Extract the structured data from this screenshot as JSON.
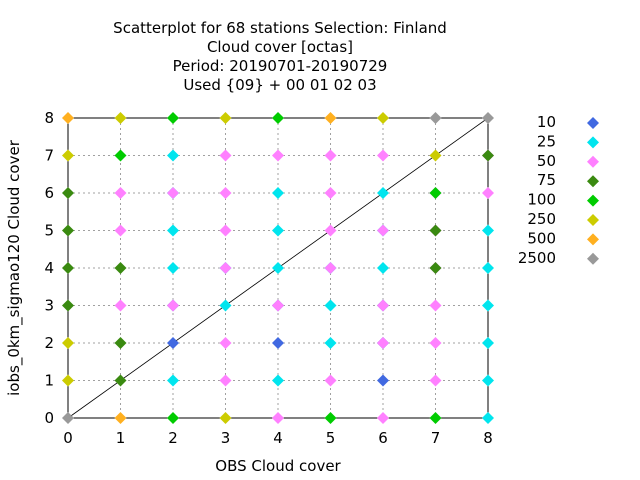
{
  "chart_data": {
    "type": "scatter",
    "title_lines": [
      "Scatterplot for   68 stations Selection: Finland",
      "Cloud cover [octas]",
      "Period: 20190701-20190729",
      "Used {09} + 00 01 02 03"
    ],
    "xlabel": "OBS Cloud cover",
    "ylabel": "iobs_0km_sigmao120 Cloud cover",
    "xlim": [
      0,
      8
    ],
    "ylim": [
      0,
      8
    ],
    "xticks": [
      "0",
      "1",
      "2",
      "3",
      "4",
      "5",
      "6",
      "7",
      "8"
    ],
    "yticks": [
      "0",
      "1",
      "2",
      "3",
      "4",
      "5",
      "6",
      "7",
      "8"
    ],
    "grid": true,
    "diagonal": true,
    "legend_position": "right",
    "series": [
      {
        "name": "10",
        "color": "#4169e1",
        "points": [
          [
            2,
            3
          ],
          [
            4,
            3
          ],
          [
            6,
            3
          ],
          [
            2,
            2
          ],
          [
            4,
            2
          ],
          [
            6,
            2
          ],
          [
            6,
            1
          ]
        ]
      },
      {
        "name": "25",
        "color": "#00e5ee",
        "points": [
          [
            2,
            6
          ],
          [
            4,
            6
          ],
          [
            2,
            7
          ],
          [
            2,
            5
          ],
          [
            4,
            5
          ],
          [
            6,
            5
          ],
          [
            8,
            5
          ],
          [
            2,
            4
          ],
          [
            3,
            4
          ],
          [
            4,
            4
          ],
          [
            5,
            4
          ],
          [
            6,
            4
          ],
          [
            8,
            4
          ],
          [
            3,
            3
          ],
          [
            5,
            3
          ],
          [
            8,
            3
          ],
          [
            5,
            2
          ],
          [
            8,
            2
          ],
          [
            2,
            1
          ],
          [
            4,
            1
          ],
          [
            8,
            1
          ],
          [
            6,
            6
          ],
          [
            8,
            0
          ]
        ]
      },
      {
        "name": "50",
        "color": "#ff80ff",
        "points": [
          [
            3,
            7
          ],
          [
            4,
            7
          ],
          [
            5,
            7
          ],
          [
            6,
            7
          ],
          [
            8,
            7
          ],
          [
            1,
            6
          ],
          [
            2,
            6
          ],
          [
            3,
            6
          ],
          [
            5,
            6
          ],
          [
            7,
            6
          ],
          [
            8,
            6
          ],
          [
            1,
            5
          ],
          [
            3,
            5
          ],
          [
            5,
            5
          ],
          [
            7,
            5
          ],
          [
            6,
            5
          ],
          [
            1,
            3
          ],
          [
            2,
            3
          ],
          [
            4,
            3
          ],
          [
            6,
            3
          ],
          [
            7,
            3
          ],
          [
            3,
            2
          ],
          [
            6,
            2
          ],
          [
            7,
            2
          ],
          [
            3,
            1
          ],
          [
            5,
            1
          ],
          [
            7,
            1
          ],
          [
            4,
            0
          ],
          [
            6,
            0
          ],
          [
            7,
            4
          ],
          [
            5,
            4
          ],
          [
            3,
            4
          ]
        ]
      },
      {
        "name": "75",
        "color": "#3a8a10",
        "points": [
          [
            8,
            7
          ],
          [
            0,
            6
          ],
          [
            0,
            5
          ],
          [
            0,
            4
          ],
          [
            1,
            4
          ],
          [
            7,
            5
          ],
          [
            7,
            4
          ],
          [
            0,
            3
          ],
          [
            1,
            2
          ],
          [
            1,
            1
          ]
        ]
      },
      {
        "name": "100",
        "color": "#00cc00",
        "points": [
          [
            2,
            8
          ],
          [
            4,
            8
          ],
          [
            1,
            7
          ],
          [
            7,
            6
          ],
          [
            2,
            0
          ],
          [
            5,
            0
          ],
          [
            7,
            0
          ]
        ]
      },
      {
        "name": "250",
        "color": "#cccc00",
        "points": [
          [
            1,
            8
          ],
          [
            3,
            8
          ],
          [
            6,
            8
          ],
          [
            0,
            7
          ],
          [
            7,
            7
          ],
          [
            0,
            2
          ],
          [
            0,
            1
          ],
          [
            3,
            0
          ]
        ]
      },
      {
        "name": "500",
        "color": "#ffb020",
        "points": [
          [
            0,
            8
          ],
          [
            5,
            8
          ],
          [
            1,
            0
          ]
        ]
      },
      {
        "name": "2500",
        "color": "#999999",
        "points": [
          [
            7,
            8
          ],
          [
            8,
            8
          ],
          [
            0,
            0
          ]
        ]
      }
    ]
  }
}
